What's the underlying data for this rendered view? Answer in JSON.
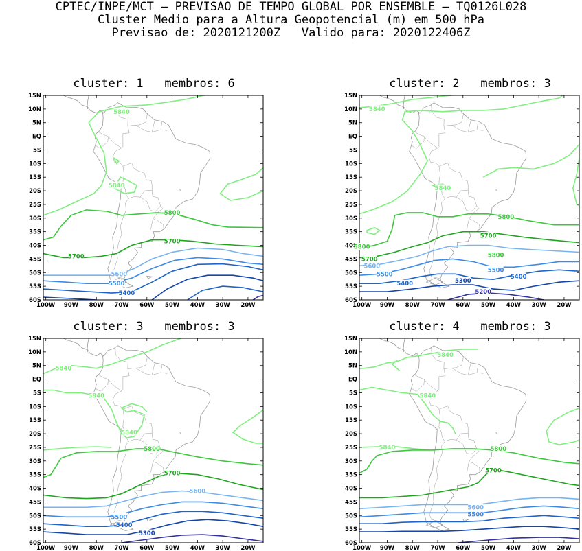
{
  "header": {
    "line1": "CPTEC/INPE/MCT — PREVISAO DE TEMPO GLOBAL POR ENSEMBLE — TQ0126L028",
    "line2": "Cluster Medio para a Altura Geopotencial (m) em 500 hPa",
    "line3": "Previsao de: 2020121200Z   Valido para: 2020122406Z"
  },
  "axes": {
    "lat_labels": [
      "15N",
      "10N",
      "5N",
      "EQ",
      "5S",
      "10S",
      "15S",
      "20S",
      "25S",
      "30S",
      "35S",
      "40S",
      "45S",
      "50S",
      "55S",
      "60S"
    ],
    "lon_labels": [
      "100W",
      "90W",
      "80W",
      "70W",
      "60W",
      "50W",
      "40W",
      "30W",
      "20W"
    ]
  },
  "colors": {
    "5840": "#80ef80",
    "5800": "#3cc83c",
    "5700": "#1ea51e",
    "5600": "#78b4f0",
    "5500": "#3c8ce6",
    "5400": "#1e64c8",
    "5300": "#1446aa",
    "5200": "#3232a0"
  },
  "panels": [
    {
      "title": "cluster: 1   membros: 6",
      "labels": [
        {
          "text": "5840",
          "c": "5840",
          "lon": -70,
          "lat": 9
        },
        {
          "text": "5840",
          "c": "5840",
          "lon": -72,
          "lat": -18
        },
        {
          "text": "5800",
          "c": "5800",
          "lon": -50,
          "lat": -28
        },
        {
          "text": "5700",
          "c": "5700",
          "lon": -50,
          "lat": -38.5
        },
        {
          "text": "5700",
          "c": "5700",
          "lon": -88,
          "lat": -44
        },
        {
          "text": "5600",
          "c": "5600",
          "lon": -71,
          "lat": -50.5
        },
        {
          "text": "5500",
          "c": "5500",
          "lon": -72,
          "lat": -54
        },
        {
          "text": "5400",
          "c": "5400",
          "lon": -68,
          "lat": -57.5
        }
      ]
    },
    {
      "title": "cluster: 2   membros: 3",
      "labels": [
        {
          "text": "5840",
          "c": "5840",
          "lon": -94,
          "lat": 10
        },
        {
          "text": "5840",
          "c": "5840",
          "lon": -68,
          "lat": -19
        },
        {
          "text": "5800",
          "c": "5800",
          "lon": -43,
          "lat": -29.5
        },
        {
          "text": "5700",
          "c": "5700",
          "lon": -50,
          "lat": -36.5
        },
        {
          "text": "5800",
          "c": "5800",
          "lon": -100,
          "lat": -40.5
        },
        {
          "text": "5700",
          "c": "5700",
          "lon": -97,
          "lat": -45
        },
        {
          "text": "5600",
          "c": "5600",
          "lon": -96,
          "lat": -47.5
        },
        {
          "text": "5500",
          "c": "5500",
          "lon": -91,
          "lat": -50.5
        },
        {
          "text": "5400",
          "c": "5400",
          "lon": -83,
          "lat": -54
        },
        {
          "text": "5800",
          "c": "5800",
          "lon": -47,
          "lat": -43.5
        },
        {
          "text": "5500",
          "c": "5500",
          "lon": -47,
          "lat": -49
        },
        {
          "text": "5400",
          "c": "5400",
          "lon": -38,
          "lat": -51.5
        },
        {
          "text": "5300",
          "c": "5300",
          "lon": -60,
          "lat": -53
        },
        {
          "text": "5200",
          "c": "5200",
          "lon": -52,
          "lat": -57
        }
      ]
    },
    {
      "title": "cluster: 3   membros: 3",
      "labels": [
        {
          "text": "5840",
          "c": "5840",
          "lon": -93,
          "lat": 4
        },
        {
          "text": "5840",
          "c": "5840",
          "lon": -80,
          "lat": -6
        },
        {
          "text": "5840",
          "c": "5840",
          "lon": -67,
          "lat": -19.5
        },
        {
          "text": "5800",
          "c": "5800",
          "lon": -58,
          "lat": -25.5
        },
        {
          "text": "5700",
          "c": "5700",
          "lon": -50,
          "lat": -34.5
        },
        {
          "text": "5600",
          "c": "5600",
          "lon": -40,
          "lat": -41
        },
        {
          "text": "5500",
          "c": "5500",
          "lon": -71,
          "lat": -50.5
        },
        {
          "text": "5400",
          "c": "5400",
          "lon": -69,
          "lat": -53.5
        },
        {
          "text": "5300",
          "c": "5300",
          "lon": -60,
          "lat": -56.5
        }
      ]
    },
    {
      "title": "cluster: 4   membros: 3",
      "labels": [
        {
          "text": "5840",
          "c": "5840",
          "lon": -67,
          "lat": 9
        },
        {
          "text": "5840",
          "c": "5840",
          "lon": -74,
          "lat": -6
        },
        {
          "text": "5840",
          "c": "5840",
          "lon": -90,
          "lat": -25
        },
        {
          "text": "5800",
          "c": "5800",
          "lon": -46,
          "lat": -25.5
        },
        {
          "text": "5700",
          "c": "5700",
          "lon": -48,
          "lat": -33.5
        },
        {
          "text": "5600",
          "c": "5600",
          "lon": -55,
          "lat": -47
        },
        {
          "text": "5500",
          "c": "5500",
          "lon": -55,
          "lat": -49.5
        }
      ]
    }
  ]
}
